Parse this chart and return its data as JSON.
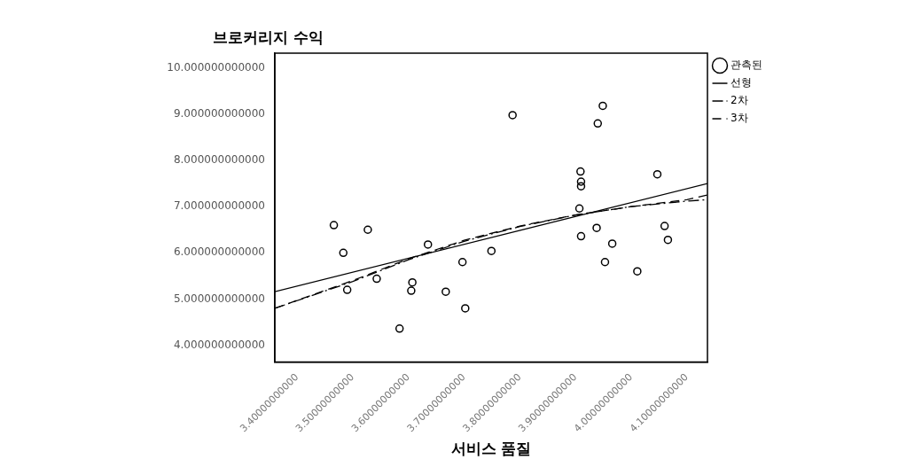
{
  "chart_data": {
    "type": "scatter",
    "xlabel": "서비스 품질",
    "ylabel": "브로커리지 수익",
    "xlim": [
      3.36,
      4.137
    ],
    "ylim": [
      3.64,
      10.32
    ],
    "xticks": [
      {
        "value": 3.4,
        "label": "3.40000000000"
      },
      {
        "value": 3.5,
        "label": "3.50000000000"
      },
      {
        "value": 3.6,
        "label": "3.60000000000"
      },
      {
        "value": 3.7,
        "label": "3.70000000000"
      },
      {
        "value": 3.8,
        "label": "3.80000000000"
      },
      {
        "value": 3.9,
        "label": "3.90000000000"
      },
      {
        "value": 4.0,
        "label": "4.00000000000"
      },
      {
        "value": 4.1,
        "label": "4.10000000000"
      }
    ],
    "yticks": [
      {
        "value": 4,
        "label": "4.000000000000"
      },
      {
        "value": 5,
        "label": "5.000000000000"
      },
      {
        "value": 6,
        "label": "6.000000000000"
      },
      {
        "value": 7,
        "label": "7.000000000000"
      },
      {
        "value": 8,
        "label": "8.000000000000"
      },
      {
        "value": 9,
        "label": "9.000000000000"
      },
      {
        "value": 10,
        "label": "10.000000000000"
      }
    ],
    "legend": "top right",
    "grid": false,
    "series": [
      {
        "name": "관측된",
        "type": "scatter",
        "marker": "circle",
        "color": "#000000",
        "x": [
          3.466,
          3.483,
          3.49,
          3.527,
          3.543,
          3.584,
          3.605,
          3.607,
          3.635,
          3.667,
          3.697,
          3.702,
          3.749,
          3.787,
          3.907,
          3.909,
          3.91,
          3.91,
          3.91,
          3.94,
          3.949,
          3.938,
          3.953,
          3.966,
          4.011,
          4.047,
          4.06,
          4.066
        ],
        "values": [
          6.6,
          6.0,
          5.2,
          6.5,
          5.44,
          4.36,
          5.18,
          5.36,
          6.18,
          5.16,
          5.8,
          4.8,
          6.04,
          8.98,
          6.96,
          7.76,
          7.54,
          7.44,
          6.36,
          8.8,
          9.18,
          6.54,
          5.8,
          6.2,
          5.6,
          7.7,
          6.58,
          6.28
        ]
      },
      {
        "name": "선형",
        "type": "line",
        "marker": "none",
        "line_style": "solid",
        "color": "#000000",
        "x": [
          3.36,
          4.137
        ],
        "values": [
          5.16,
          7.5
        ]
      },
      {
        "name": "2차",
        "type": "line",
        "marker": "none",
        "line_style": "dashdot",
        "color": "#000000",
        "x": [
          3.36,
          3.5,
          3.6,
          3.7,
          3.8,
          3.9,
          4.0,
          4.1,
          4.137
        ],
        "values": [
          4.8,
          5.38,
          5.85,
          6.25,
          6.57,
          6.82,
          7.0,
          7.12,
          7.15
        ]
      },
      {
        "name": "3차",
        "type": "line",
        "marker": "none",
        "line_style": "dashed",
        "color": "#000000",
        "x": [
          3.36,
          3.5,
          3.6,
          3.7,
          3.8,
          3.9,
          4.0,
          4.1,
          4.137
        ],
        "values": [
          4.8,
          5.4,
          5.87,
          6.27,
          6.58,
          6.82,
          7.0,
          7.15,
          7.25
        ]
      }
    ]
  }
}
